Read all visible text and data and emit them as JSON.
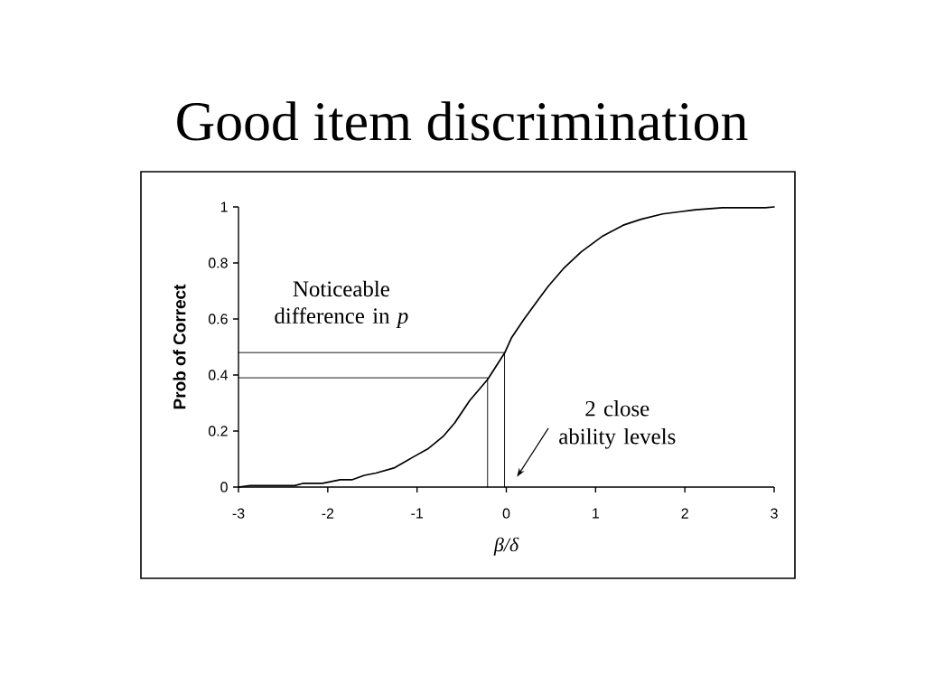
{
  "chart_data": {
    "type": "line",
    "title": "Good item discrimination",
    "xlabel": "β/δ",
    "ylabel": "Prob of Correct",
    "x": [
      -3.0,
      -2.87,
      -2.37,
      -2.28,
      -2.06,
      -1.86,
      -1.73,
      -1.59,
      -1.46,
      -1.25,
      -1.05,
      -0.88,
      -0.71,
      -0.58,
      -0.41,
      -0.21,
      -0.02,
      0.06,
      0.2,
      0.37,
      0.47,
      0.64,
      0.84,
      1.07,
      1.31,
      1.51,
      1.75,
      1.95,
      2.12,
      2.42,
      2.9,
      3.0
    ],
    "series": [
      {
        "color": "#000000",
        "values": [
          0,
          0.005,
          0.005,
          0.013,
          0.013,
          0.026,
          0.026,
          0.042,
          0.05,
          0.069,
          0.106,
          0.136,
          0.18,
          0.228,
          0.309,
          0.384,
          0.478,
          0.534,
          0.6,
          0.674,
          0.717,
          0.78,
          0.84,
          0.894,
          0.935,
          0.956,
          0.975,
          0.983,
          0.99,
          0.997,
          0.997,
          1.0
        ]
      },
      {
        "color": "#000000",
        "x": [
          -3,
          -0.02,
          -0.02
        ],
        "values": [
          0.48,
          0.48,
          0
        ]
      },
      {
        "color": "#000000",
        "x": [
          -3,
          -0.21,
          -0.21
        ],
        "values": [
          0.39,
          0.39,
          0
        ]
      }
    ],
    "xlim": [
      -3,
      3
    ],
    "ylim": [
      0,
      1
    ],
    "xticks": [
      -3,
      -2,
      -1,
      0,
      1,
      2,
      3
    ],
    "yticks": [
      0,
      0.2,
      0.4,
      0.6,
      0.8,
      1
    ],
    "annotations": [
      "Noticeable difference in *p*",
      "2 close ability levels"
    ],
    "marker": "none",
    "line_style": "solid"
  }
}
